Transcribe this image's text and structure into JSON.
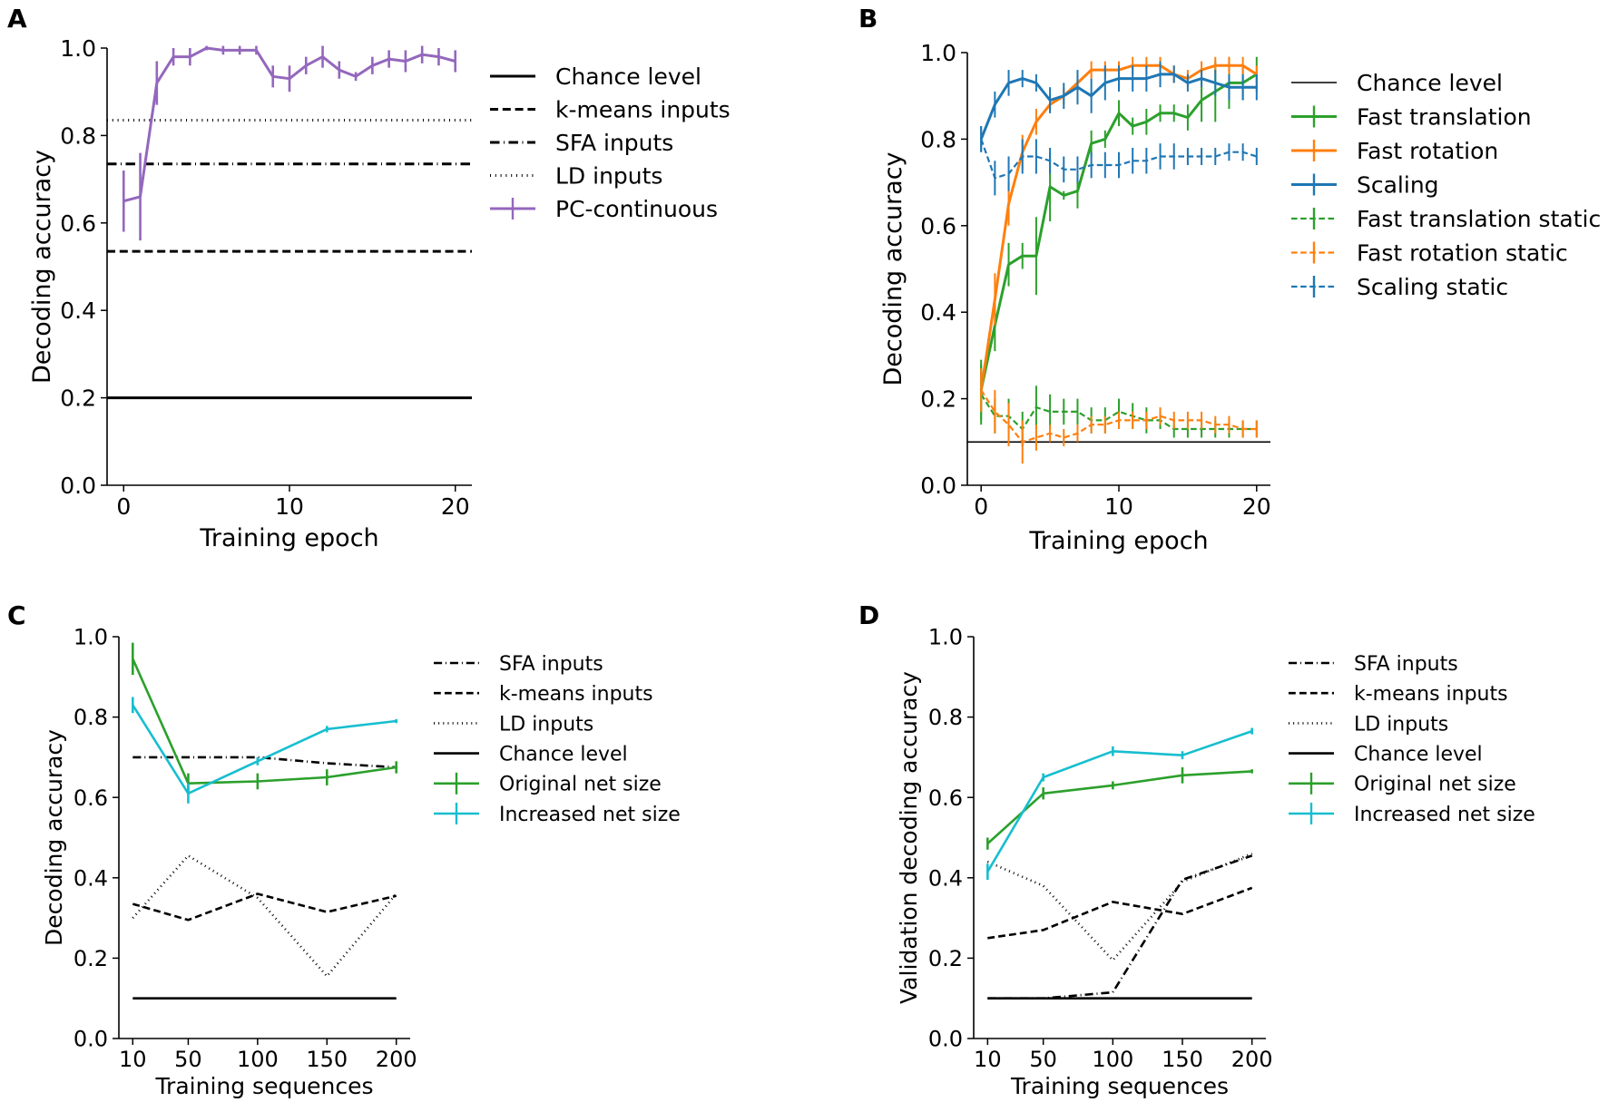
{
  "colors": {
    "purple": "#9467bd",
    "green": "#2ca02c",
    "orange": "#ff7f0e",
    "blue": "#1f77b4",
    "cyan": "#17becf",
    "black": "#000000"
  },
  "chart_data": [
    {
      "panel": "A",
      "type": "line",
      "xlabel": "Training epoch",
      "ylabel": "Decoding accuracy",
      "xlim": [
        -1,
        21
      ],
      "ylim": [
        0,
        1
      ],
      "xticks": [
        0,
        10,
        20
      ],
      "yticks": [
        0.0,
        0.2,
        0.4,
        0.6,
        0.8,
        1.0
      ],
      "ytick_labels": [
        "0.0",
        "0.2",
        "0.4",
        "0.6",
        "0.8",
        "1.0"
      ],
      "x_axis_start": 0,
      "legend": [
        {
          "label": "Chance level",
          "style": "solid",
          "color": "black"
        },
        {
          "label": "k-means inputs",
          "style": "dashed",
          "color": "black"
        },
        {
          "label": "SFA inputs",
          "style": "dashdot",
          "color": "black"
        },
        {
          "label": "LD inputs",
          "style": "dotted",
          "color": "black"
        },
        {
          "label": "PC-continuous",
          "style": "solid",
          "color": "purple",
          "errorbar": true
        }
      ],
      "hlines": [
        {
          "name": "Chance level",
          "y": 0.2,
          "style": "solid"
        },
        {
          "name": "k-means inputs",
          "y": 0.535,
          "style": "dashed"
        },
        {
          "name": "SFA inputs",
          "y": 0.735,
          "style": "dashdot"
        },
        {
          "name": "LD inputs",
          "y": 0.835,
          "style": "dotted"
        }
      ],
      "series": [
        {
          "name": "PC-continuous",
          "color": "purple",
          "style": "solid",
          "x": [
            0,
            1,
            2,
            3,
            4,
            5,
            6,
            7,
            8,
            9,
            10,
            11,
            12,
            13,
            14,
            15,
            16,
            17,
            18,
            19,
            20
          ],
          "y": [
            0.65,
            0.66,
            0.92,
            0.98,
            0.98,
            1.0,
            0.995,
            0.995,
            0.995,
            0.935,
            0.93,
            0.96,
            0.98,
            0.95,
            0.935,
            0.96,
            0.975,
            0.97,
            0.985,
            0.98,
            0.97
          ],
          "err": [
            0.07,
            0.1,
            0.05,
            0.02,
            0.02,
            0.005,
            0.01,
            0.01,
            0.01,
            0.025,
            0.03,
            0.02,
            0.025,
            0.02,
            0.01,
            0.02,
            0.02,
            0.025,
            0.02,
            0.02,
            0.025
          ]
        }
      ]
    },
    {
      "panel": "B",
      "type": "line",
      "xlabel": "Training epoch",
      "ylabel": "Decoding accuracy",
      "xlim": [
        -1,
        21
      ],
      "ylim": [
        0,
        1
      ],
      "xticks": [
        0,
        10,
        20
      ],
      "yticks": [
        0.0,
        0.2,
        0.4,
        0.6,
        0.8,
        1.0
      ],
      "ytick_labels": [
        "0.0",
        "0.2",
        "0.4",
        "0.6",
        "0.8",
        "1.0"
      ],
      "x_axis_start": 0,
      "legend": [
        {
          "label": "Chance level",
          "style": "solid",
          "color": "black"
        },
        {
          "label": "Fast translation",
          "style": "solid",
          "color": "green",
          "errorbar": true
        },
        {
          "label": "Fast rotation",
          "style": "solid",
          "color": "orange",
          "errorbar": true
        },
        {
          "label": "Scaling",
          "style": "solid",
          "color": "blue",
          "errorbar": true
        },
        {
          "label": "Fast translation static",
          "style": "dashed",
          "color": "green",
          "errorbar": true
        },
        {
          "label": "Fast rotation static",
          "style": "dashed",
          "color": "orange",
          "errorbar": true
        },
        {
          "label": "Scaling static",
          "style": "dashed",
          "color": "blue",
          "errorbar": true
        }
      ],
      "hlines": [
        {
          "name": "Chance level",
          "y": 0.1,
          "style": "thin"
        }
      ],
      "series": [
        {
          "name": "Fast translation",
          "color": "green",
          "style": "solid",
          "x": [
            0,
            1,
            2,
            3,
            4,
            5,
            6,
            7,
            8,
            9,
            10,
            11,
            12,
            13,
            14,
            15,
            16,
            17,
            18,
            19,
            20
          ],
          "y": [
            0.22,
            0.37,
            0.51,
            0.53,
            0.53,
            0.69,
            0.67,
            0.68,
            0.79,
            0.8,
            0.86,
            0.83,
            0.84,
            0.86,
            0.86,
            0.85,
            0.89,
            0.91,
            0.93,
            0.93,
            0.95
          ],
          "err": [
            0.07,
            0.06,
            0.05,
            0.03,
            0.09,
            0.08,
            0.01,
            0.04,
            0.03,
            0.02,
            0.03,
            0.02,
            0.03,
            0.02,
            0.02,
            0.03,
            0.05,
            0.07,
            0.06,
            0.04,
            0.04
          ]
        },
        {
          "name": "Fast rotation",
          "color": "orange",
          "style": "solid",
          "x": [
            0,
            1,
            2,
            3,
            4,
            5,
            6,
            7,
            8,
            9,
            10,
            11,
            12,
            13,
            14,
            15,
            16,
            17,
            18,
            19,
            20
          ],
          "y": [
            0.22,
            0.43,
            0.65,
            0.77,
            0.84,
            0.88,
            0.9,
            0.93,
            0.96,
            0.96,
            0.96,
            0.97,
            0.97,
            0.97,
            0.95,
            0.94,
            0.96,
            0.97,
            0.97,
            0.97,
            0.95
          ],
          "err": [
            0.05,
            0.06,
            0.05,
            0.04,
            0.03,
            0.02,
            0.02,
            0.02,
            0.02,
            0.02,
            0.02,
            0.02,
            0.02,
            0.02,
            0.02,
            0.02,
            0.02,
            0.02,
            0.02,
            0.02,
            0.02
          ]
        },
        {
          "name": "Scaling",
          "color": "blue",
          "style": "solid",
          "x": [
            0,
            1,
            2,
            3,
            4,
            5,
            6,
            7,
            8,
            9,
            10,
            11,
            12,
            13,
            14,
            15,
            16,
            17,
            18,
            19,
            20
          ],
          "y": [
            0.8,
            0.88,
            0.93,
            0.94,
            0.93,
            0.89,
            0.9,
            0.92,
            0.9,
            0.93,
            0.94,
            0.94,
            0.94,
            0.95,
            0.95,
            0.93,
            0.94,
            0.93,
            0.92,
            0.92,
            0.92
          ],
          "err": [
            0.03,
            0.03,
            0.03,
            0.02,
            0.02,
            0.03,
            0.03,
            0.04,
            0.04,
            0.04,
            0.03,
            0.03,
            0.03,
            0.03,
            0.02,
            0.02,
            0.02,
            0.03,
            0.03,
            0.03,
            0.03
          ]
        },
        {
          "name": "Fast translation static",
          "color": "green",
          "style": "dashed",
          "x": [
            0,
            1,
            2,
            3,
            4,
            5,
            6,
            7,
            8,
            9,
            10,
            11,
            12,
            13,
            14,
            15,
            16,
            17,
            18,
            19,
            20
          ],
          "y": [
            0.21,
            0.16,
            0.16,
            0.13,
            0.18,
            0.17,
            0.17,
            0.17,
            0.15,
            0.15,
            0.17,
            0.16,
            0.15,
            0.15,
            0.13,
            0.13,
            0.13,
            0.13,
            0.13,
            0.13,
            0.13
          ],
          "err": [
            0.07,
            0.04,
            0.04,
            0.04,
            0.05,
            0.04,
            0.03,
            0.03,
            0.03,
            0.03,
            0.03,
            0.03,
            0.03,
            0.02,
            0.02,
            0.02,
            0.02,
            0.02,
            0.02,
            0.02,
            0.02
          ]
        },
        {
          "name": "Fast rotation static",
          "color": "orange",
          "style": "dashed",
          "x": [
            0,
            1,
            2,
            3,
            4,
            5,
            6,
            7,
            8,
            9,
            10,
            11,
            12,
            13,
            14,
            15,
            16,
            17,
            18,
            19,
            20
          ],
          "y": [
            0.22,
            0.17,
            0.14,
            0.1,
            0.11,
            0.12,
            0.11,
            0.12,
            0.14,
            0.14,
            0.15,
            0.15,
            0.15,
            0.16,
            0.15,
            0.15,
            0.15,
            0.14,
            0.14,
            0.13,
            0.13
          ],
          "err": [
            0.05,
            0.05,
            0.05,
            0.05,
            0.03,
            0.02,
            0.02,
            0.02,
            0.02,
            0.02,
            0.02,
            0.02,
            0.02,
            0.02,
            0.02,
            0.02,
            0.02,
            0.02,
            0.02,
            0.02,
            0.02
          ]
        },
        {
          "name": "Scaling static",
          "color": "blue",
          "style": "dashed",
          "x": [
            0,
            1,
            2,
            3,
            4,
            5,
            6,
            7,
            8,
            9,
            10,
            11,
            12,
            13,
            14,
            15,
            16,
            17,
            18,
            19,
            20
          ],
          "y": [
            0.8,
            0.71,
            0.72,
            0.76,
            0.76,
            0.75,
            0.73,
            0.73,
            0.74,
            0.74,
            0.74,
            0.75,
            0.75,
            0.76,
            0.76,
            0.76,
            0.76,
            0.76,
            0.77,
            0.77,
            0.76
          ],
          "err": [
            0.03,
            0.04,
            0.04,
            0.04,
            0.04,
            0.03,
            0.03,
            0.03,
            0.03,
            0.03,
            0.03,
            0.03,
            0.03,
            0.03,
            0.03,
            0.02,
            0.02,
            0.02,
            0.02,
            0.02,
            0.02
          ]
        }
      ]
    },
    {
      "panel": "C",
      "type": "line",
      "xlabel": "Training sequences",
      "ylabel": "Decoding accuracy",
      "xlim": [
        0,
        210
      ],
      "ylim": [
        0,
        1
      ],
      "xticks": [
        10,
        50,
        100,
        150,
        200
      ],
      "yticks": [
        0.0,
        0.2,
        0.4,
        0.6,
        0.8,
        1.0
      ],
      "ytick_labels": [
        "0.0",
        "0.2",
        "0.4",
        "0.6",
        "0.8",
        "1.0"
      ],
      "x_axis_start": 10,
      "legend": [
        {
          "label": "SFA inputs",
          "style": "dashdot",
          "color": "black"
        },
        {
          "label": "k-means inputs",
          "style": "dashed",
          "color": "black"
        },
        {
          "label": "LD inputs",
          "style": "dotted",
          "color": "black"
        },
        {
          "label": "Chance level",
          "style": "solid",
          "color": "black"
        },
        {
          "label": "Original net size",
          "style": "solid",
          "color": "green",
          "errorbar": true
        },
        {
          "label": "Increased net size",
          "style": "solid",
          "color": "cyan",
          "errorbar": true
        }
      ],
      "series": [
        {
          "name": "SFA inputs",
          "color": "black",
          "style": "dashdot",
          "x": [
            10,
            50,
            100,
            150,
            200
          ],
          "y": [
            0.7,
            0.7,
            0.7,
            0.685,
            0.675
          ]
        },
        {
          "name": "k-means inputs",
          "color": "black",
          "style": "dashed",
          "x": [
            10,
            50,
            100,
            150,
            200
          ],
          "y": [
            0.335,
            0.295,
            0.36,
            0.315,
            0.355
          ]
        },
        {
          "name": "LD inputs",
          "color": "black",
          "style": "dotted",
          "x": [
            10,
            50,
            100,
            150,
            200
          ],
          "y": [
            0.3,
            0.455,
            0.35,
            0.155,
            0.36
          ]
        },
        {
          "name": "Chance level",
          "color": "black",
          "style": "solid",
          "x": [
            10,
            50,
            100,
            150,
            200
          ],
          "y": [
            0.1,
            0.1,
            0.1,
            0.1,
            0.1
          ]
        },
        {
          "name": "Original net size",
          "color": "green",
          "style": "solid",
          "x": [
            10,
            50,
            100,
            150,
            200
          ],
          "y": [
            0.945,
            0.635,
            0.64,
            0.65,
            0.675
          ],
          "err": [
            0.04,
            0.025,
            0.02,
            0.02,
            0.015
          ]
        },
        {
          "name": "Increased net size",
          "color": "cyan",
          "style": "solid",
          "x": [
            10,
            50,
            100,
            150,
            200
          ],
          "y": [
            0.83,
            0.61,
            0.69,
            0.77,
            0.79
          ],
          "err": [
            0.02,
            0.025,
            0.01,
            0.008,
            0.005
          ]
        }
      ]
    },
    {
      "panel": "D",
      "type": "line",
      "xlabel": "Training sequences",
      "ylabel": "Validation decoding accuracy",
      "xlim": [
        0,
        210
      ],
      "ylim": [
        0,
        1
      ],
      "xticks": [
        10,
        50,
        100,
        150,
        200
      ],
      "yticks": [
        0.0,
        0.2,
        0.4,
        0.6,
        0.8,
        1.0
      ],
      "ytick_labels": [
        "0.0",
        "0.2",
        "0.4",
        "0.6",
        "0.8",
        "1.0"
      ],
      "x_axis_start": 10,
      "legend": [
        {
          "label": "SFA inputs",
          "style": "dashdot",
          "color": "black"
        },
        {
          "label": "k-means inputs",
          "style": "dashed",
          "color": "black"
        },
        {
          "label": "LD inputs",
          "style": "dotted",
          "color": "black"
        },
        {
          "label": "Chance level",
          "style": "solid",
          "color": "black"
        },
        {
          "label": "Original net size",
          "style": "solid",
          "color": "green",
          "errorbar": true
        },
        {
          "label": "Increased net size",
          "style": "solid",
          "color": "cyan",
          "errorbar": true
        }
      ],
      "series": [
        {
          "name": "SFA inputs",
          "color": "black",
          "style": "dashdot",
          "x": [
            10,
            50,
            100,
            150,
            200
          ],
          "y": [
            0.1,
            0.1,
            0.115,
            0.395,
            0.455
          ]
        },
        {
          "name": "k-means inputs",
          "color": "black",
          "style": "dashed",
          "x": [
            10,
            50,
            100,
            150,
            200
          ],
          "y": [
            0.25,
            0.27,
            0.34,
            0.31,
            0.375
          ]
        },
        {
          "name": "LD inputs",
          "color": "black",
          "style": "dotted",
          "x": [
            10,
            50,
            100,
            150,
            200
          ],
          "y": [
            0.44,
            0.38,
            0.195,
            0.39,
            0.46
          ]
        },
        {
          "name": "Chance level",
          "color": "black",
          "style": "solid",
          "x": [
            10,
            50,
            100,
            150,
            200
          ],
          "y": [
            0.1,
            0.1,
            0.1,
            0.1,
            0.1
          ]
        },
        {
          "name": "Original net size",
          "color": "green",
          "style": "solid",
          "x": [
            10,
            50,
            100,
            150,
            200
          ],
          "y": [
            0.485,
            0.61,
            0.63,
            0.655,
            0.665
          ],
          "err": [
            0.015,
            0.015,
            0.01,
            0.02,
            0.005
          ]
        },
        {
          "name": "Increased net size",
          "color": "cyan",
          "style": "solid",
          "x": [
            10,
            50,
            100,
            150,
            200
          ],
          "y": [
            0.415,
            0.65,
            0.715,
            0.705,
            0.765
          ],
          "err": [
            0.02,
            0.01,
            0.012,
            0.01,
            0.008
          ]
        }
      ]
    }
  ]
}
